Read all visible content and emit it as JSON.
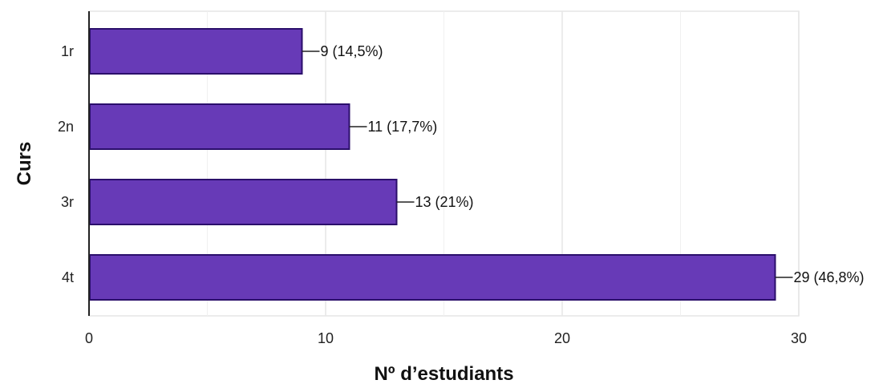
{
  "chart_data": {
    "type": "bar",
    "orientation": "horizontal",
    "categories": [
      "1r",
      "2n",
      "3r",
      "4t"
    ],
    "values": [
      9,
      11,
      13,
      29
    ],
    "data_labels": [
      "9 (14,5%)",
      "11 (17,7%)",
      "13 (21%)",
      "29 (46,8%)"
    ],
    "title": "",
    "xlabel": "Nº d’estudiants",
    "ylabel": "Curs",
    "xlim": [
      0,
      30
    ],
    "x_ticks": [
      0,
      10,
      20,
      30
    ],
    "x_minor_gridlines": [
      5,
      15,
      25
    ],
    "grid": true,
    "legend": "none",
    "colors": {
      "bar_fill": "#673ab7",
      "bar_stroke": "#2b0f6b",
      "grid": "#e6e6e6",
      "axis": "#222222"
    }
  }
}
